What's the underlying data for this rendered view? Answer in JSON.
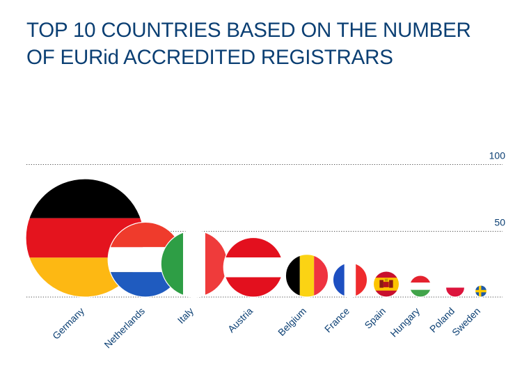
{
  "title_lines": [
    "TOP 10 COUNTRIES BASED ON THE NUMBER",
    "OF EURid ACCREDITED REGISTRARS"
  ],
  "colors": {
    "text": "#0b3f73",
    "grid": "#4a4a4a"
  },
  "chart_data": {
    "type": "bubble",
    "title": "TOP 10 COUNTRIES BASED ON THE NUMBER OF EURid ACCREDITED REGISTRARS",
    "xlabel": "",
    "ylabel": "",
    "ylim": [
      0,
      100
    ],
    "y_ticks": [
      {
        "value": 100,
        "label": "100"
      },
      {
        "value": 50,
        "label": "50"
      }
    ],
    "grid": true,
    "categories": [
      "Germany",
      "Netherlands",
      "Italy",
      "Austria",
      "Belgium",
      "France",
      "Spain",
      "Hungary",
      "Poland",
      "Sweden"
    ],
    "values": [
      95,
      64,
      58,
      53,
      41,
      35,
      29,
      26,
      24,
      19
    ],
    "marker": "circular national flag sized by value"
  }
}
